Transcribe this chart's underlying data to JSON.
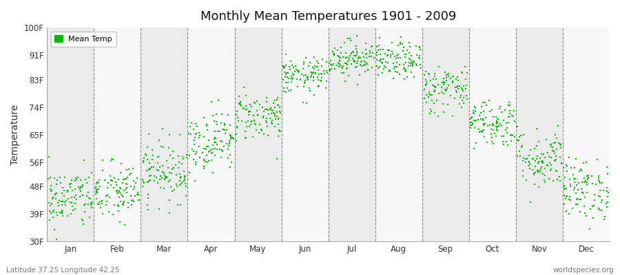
{
  "title": "Monthly Mean Temperatures 1901 - 2009",
  "ylabel": "Temperature",
  "xlabel_months": [
    "Jan",
    "Feb",
    "Mar",
    "Apr",
    "May",
    "Jun",
    "Jul",
    "Aug",
    "Sep",
    "Oct",
    "Nov",
    "Dec"
  ],
  "ytick_labels": [
    "30F",
    "39F",
    "48F",
    "56F",
    "65F",
    "74F",
    "83F",
    "91F",
    "100F"
  ],
  "ytick_values": [
    30,
    39,
    48,
    56,
    65,
    74,
    83,
    91,
    100
  ],
  "ylim": [
    30,
    100
  ],
  "xlim": [
    0,
    13
  ],
  "dot_color": "#00BB00",
  "band_color_odd": "#ebebeb",
  "band_color_even": "#f8f8f8",
  "fig_bg_color": "#ffffff",
  "plot_bg_color": "#ffffff",
  "legend_label": "Mean Temp",
  "footer_left": "Latitude 37.25 Longitude 42.25",
  "footer_right": "worldspecies.org",
  "seed": 42,
  "n_years": 109,
  "monthly_means_F": [
    44,
    46,
    53,
    63,
    71,
    84,
    90,
    89,
    80,
    69,
    57,
    47
  ],
  "monthly_stds_F": [
    5,
    5,
    5,
    5,
    4,
    3,
    3,
    3,
    4,
    4,
    5,
    5
  ]
}
